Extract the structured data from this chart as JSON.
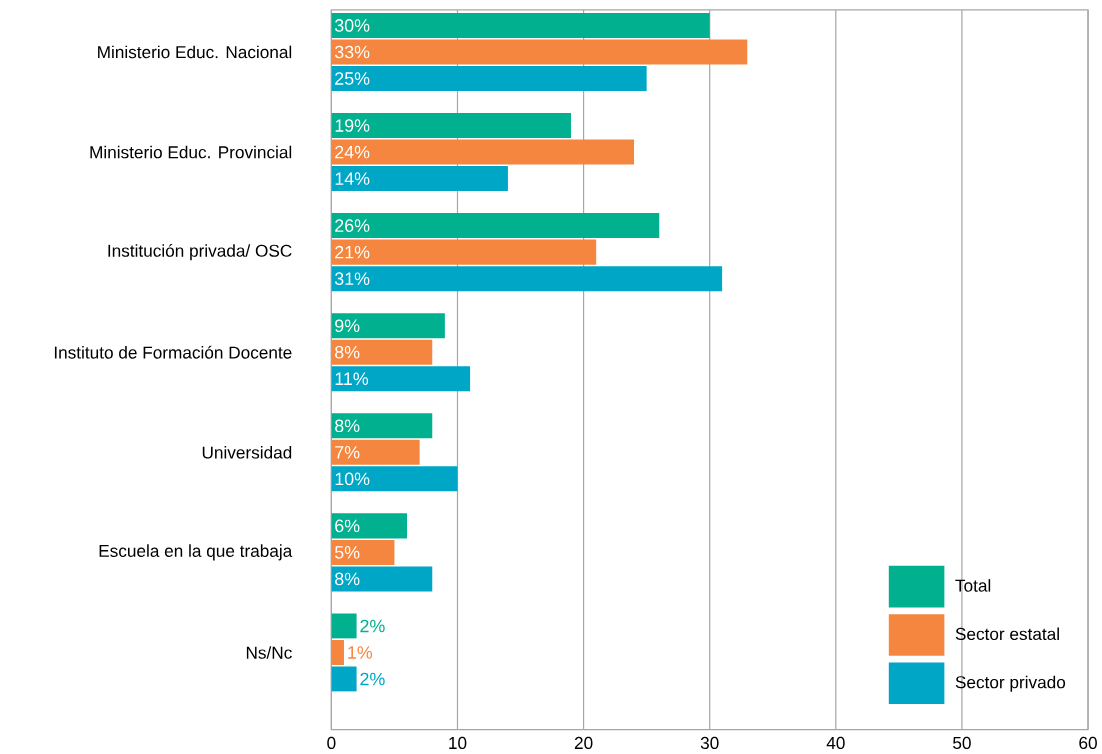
{
  "chart_data": {
    "type": "bar",
    "orientation": "horizontal",
    "categories": [
      "Ministerio Educ. Nacional",
      "Ministerio Educ. Provincial",
      "Institución privada/ OSC",
      "Instituto de Formación Docente",
      "Universidad",
      "Escuela en la que trabaja",
      "Ns/Nc"
    ],
    "series": [
      {
        "name": "Total",
        "color": "#00b08f",
        "values": [
          30,
          19,
          26,
          9,
          8,
          6,
          2
        ],
        "value_labels": [
          "30%",
          "19%",
          "26%",
          "9%",
          "8%",
          "6%",
          "2%"
        ]
      },
      {
        "name": "Sector estatal",
        "color": "#f5863f",
        "values": [
          33,
          24,
          21,
          8,
          7,
          5,
          1
        ],
        "value_labels": [
          "33%",
          "24%",
          "21%",
          "8%",
          "7%",
          "5%",
          "1%"
        ]
      },
      {
        "name": "Sector privado",
        "color": "#00a6c6",
        "values": [
          25,
          14,
          31,
          11,
          10,
          8,
          2
        ],
        "value_labels": [
          "25%",
          "14%",
          "31%",
          "11%",
          "10%",
          "8%",
          "2%"
        ]
      }
    ],
    "xlim": [
      0,
      60
    ],
    "xticks": [
      0,
      10,
      20,
      30,
      40,
      50,
      60
    ],
    "grid": "x",
    "legend": "bottom right"
  }
}
